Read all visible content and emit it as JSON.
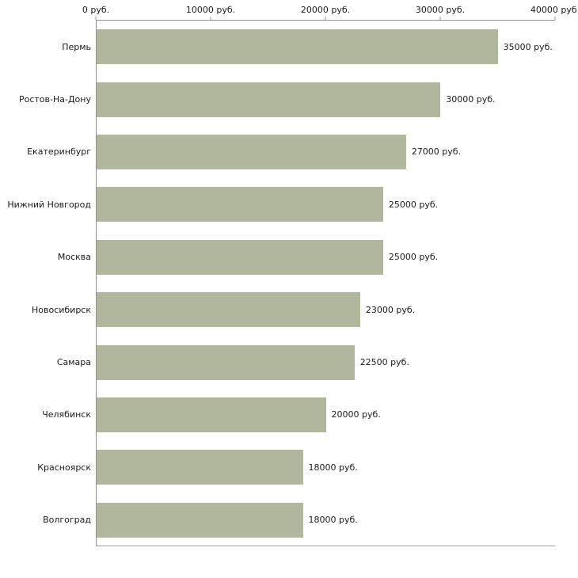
{
  "chart_data": {
    "type": "bar",
    "orientation": "horizontal",
    "title": "",
    "xlabel": "",
    "ylabel": "",
    "xlim": [
      0,
      40000
    ],
    "grid": false,
    "legend": false,
    "bar_color": "#b1b79c",
    "axis_color": "#8f8f8f",
    "x_ticks": [
      "0 руб.",
      "10000 руб.",
      "20000 руб.",
      "30000 руб.",
      "40000 руб."
    ],
    "x_tick_values": [
      0,
      10000,
      20000,
      30000,
      40000
    ],
    "categories": [
      "Пермь",
      "Ростов-На-Дону",
      "Екатеринбург",
      "Нижний Новгород",
      "Москва",
      "Новосибирск",
      "Самара",
      "Челябинск",
      "Красноярск",
      "Волгоград"
    ],
    "values": [
      35000,
      30000,
      27000,
      25000,
      25000,
      23000,
      22500,
      20000,
      18000,
      18000
    ],
    "value_labels": [
      "35000 руб.",
      "30000 руб.",
      "27000 руб.",
      "25000 руб.",
      "25000 руб.",
      "23000 руб.",
      "22500 руб.",
      "20000 руб.",
      "18000 руб.",
      "18000 руб."
    ]
  }
}
